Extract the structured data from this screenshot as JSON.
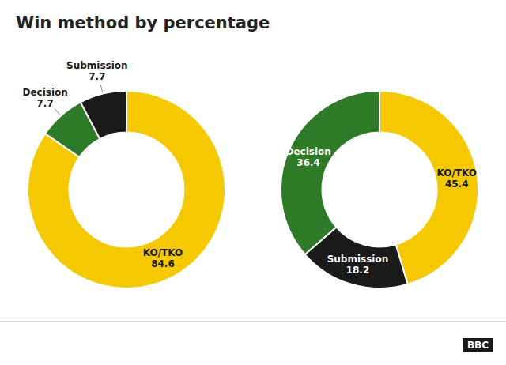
{
  "chart_data": [
    {
      "type": "donut",
      "title": "Win method by percentage",
      "categories": [
        "KO/TKO",
        "Decision",
        "Submission"
      ],
      "values": [
        84.6,
        7.7,
        7.7
      ],
      "colors": [
        "#f5c800",
        "#2d7a27",
        "#1a1a1a"
      ],
      "data_labels": true
    },
    {
      "type": "donut",
      "categories": [
        "KO/TKO",
        "Submission",
        "Decision"
      ],
      "values": [
        45.4,
        18.2,
        36.4
      ],
      "colors": [
        "#f5c800",
        "#1a1a1a",
        "#2d7a27"
      ],
      "data_labels": true,
      "annotations": [
        "BBC"
      ]
    }
  ]
}
